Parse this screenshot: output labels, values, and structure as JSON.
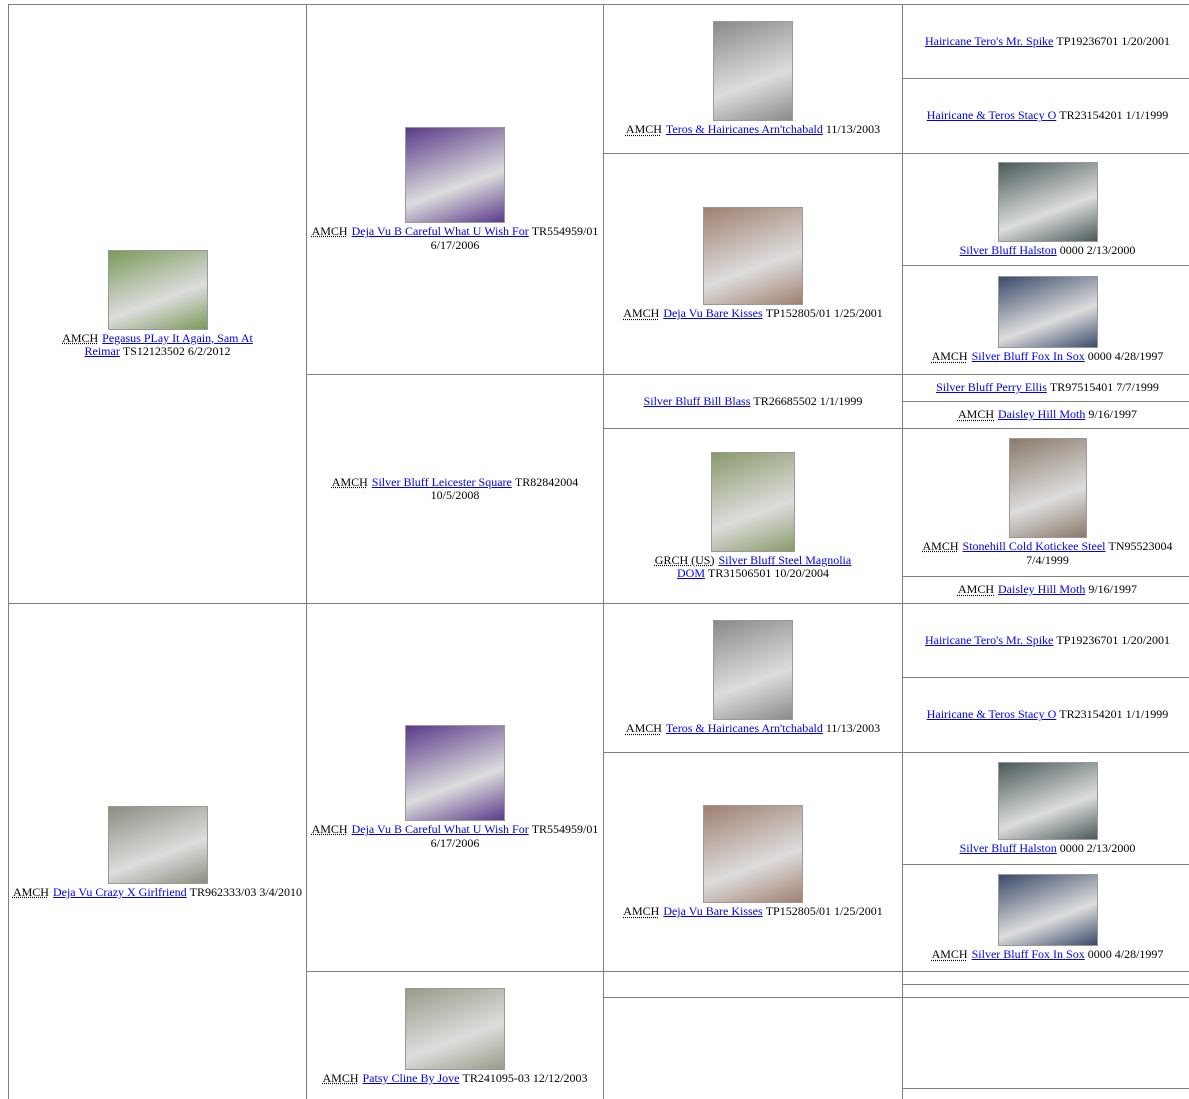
{
  "pedigree": [
    {
      "title": "AMCH",
      "name": "Pegasus PLay It Again, Sam At Reimar",
      "info": "TS12123502 6/2/2012"
    },
    {
      "title": "AMCH",
      "name": "Deja Vu Crazy X Girlfriend",
      "info": "TR962333/03 3/4/2010"
    },
    {
      "title": "AMCH",
      "name": "Deja Vu B Careful What U Wish For",
      "info": "TR554959/01 6/17/2006"
    },
    {
      "title": "AMCH",
      "name": "Silver Bluff Leicester Square",
      "info": "TR82842004 10/5/2008"
    },
    {
      "title": "AMCH",
      "name": "Deja Vu B Careful What U Wish For",
      "info": "TR554959/01 6/17/2006"
    },
    {
      "title": "AMCH",
      "name": "Patsy Cline By Jove",
      "info": "TR241095-03 12/12/2003"
    },
    {
      "title": "AMCH",
      "name": "Teros & Hairicanes Arn'tchabald",
      "info": "11/13/2003"
    },
    {
      "title": "AMCH",
      "name": "Deja Vu Bare Kisses",
      "info": "TP152805/01 1/25/2001"
    },
    {
      "name": "Silver Bluff Bill Blass",
      "info": "TR26685502 1/1/1999"
    },
    {
      "title": "GRCH (US)",
      "name": "Silver Bluff Steel Magnolia DOM",
      "info": "TR31506501 10/20/2004"
    },
    {
      "title": "AMCH",
      "name": "Teros & Hairicanes Arn'tchabald",
      "info": "11/13/2003"
    },
    {
      "title": "AMCH",
      "name": "Deja Vu Bare Kisses",
      "info": "TP152805/01 1/25/2001"
    },
    {
      "name": "Hairicane Tero's Mr. Spike",
      "info": "TP19236701 1/20/2001"
    },
    {
      "name": "Hairicane & Teros Stacy O",
      "info": "TR23154201 1/1/1999"
    },
    {
      "name": "Silver Bluff Halston",
      "info": "0000 2/13/2000"
    },
    {
      "title": "AMCH",
      "name": "Silver Bluff Fox In Sox",
      "info": "0000 4/28/1997"
    },
    {
      "name": "Silver Bluff Perry Ellis",
      "info": "TR97515401 7/7/1999"
    },
    {
      "title": "AMCH",
      "name": "Daisley Hill Moth",
      "info": "9/16/1997"
    },
    {
      "title": "AMCH",
      "name": "Stonehill Cold Kotickee Steel",
      "info": "TN95523004 7/4/1999"
    },
    {
      "title": "AMCH",
      "name": "Daisley Hill Moth",
      "info": "9/16/1997"
    },
    {
      "name": "Hairicane Tero's Mr. Spike",
      "info": "TP19236701 1/20/2001"
    },
    {
      "name": "Hairicane & Teros Stacy O",
      "info": "TR23154201 1/1/1999"
    },
    {
      "name": "Silver Bluff Halston",
      "info": "0000 2/13/2000"
    },
    {
      "title": "AMCH",
      "name": "Silver Bluff Fox In Sox",
      "info": "0000 4/28/1997"
    }
  ]
}
